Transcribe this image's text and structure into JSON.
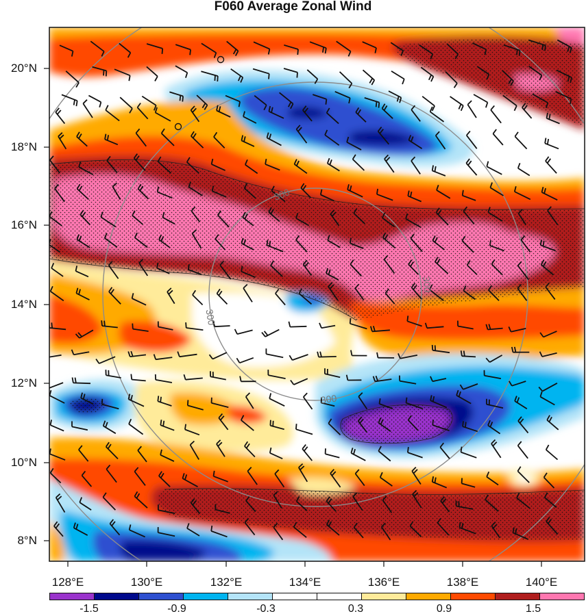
{
  "title": "F060 Average Zonal Wind",
  "y_ticks": [
    "20°N",
    "18°N",
    "16°N",
    "14°N",
    "12°N",
    "10°N",
    "8°N"
  ],
  "x_ticks": [
    "128°E",
    "130°E",
    "132°E",
    "134°E",
    "136°E",
    "138°E",
    "140°E"
  ],
  "contour_labels": [
    "300",
    "300",
    "300",
    "300"
  ],
  "colorbar": {
    "labels": [
      "-1.5",
      "-0.9",
      "-0.3",
      "0.3",
      "0.9",
      "1.5"
    ],
    "colors": [
      "#9a33cc",
      "#000a8c",
      "#2e50d0",
      "#00b4f0",
      "#b4e4f8",
      "#ffffff",
      "#ffffff",
      "#ffeb9a",
      "#ffaa00",
      "#ff4a00",
      "#b01e1e",
      "#ff77b0"
    ]
  },
  "colors": {
    "neg_strong": "#9a33cc",
    "neg_dark": "#000a8c",
    "neg_blue": "#2e50d0",
    "neg_cyan": "#00b4f0",
    "neg_light": "#b4e4f8",
    "pos_light": "#ffeb9a",
    "pos_orange": "#ffaa00",
    "pos_red": "#ff4a00",
    "pos_dark": "#b01e1e",
    "pos_pink": "#ff77b0",
    "range_ring": "#8c8c8c"
  }
}
